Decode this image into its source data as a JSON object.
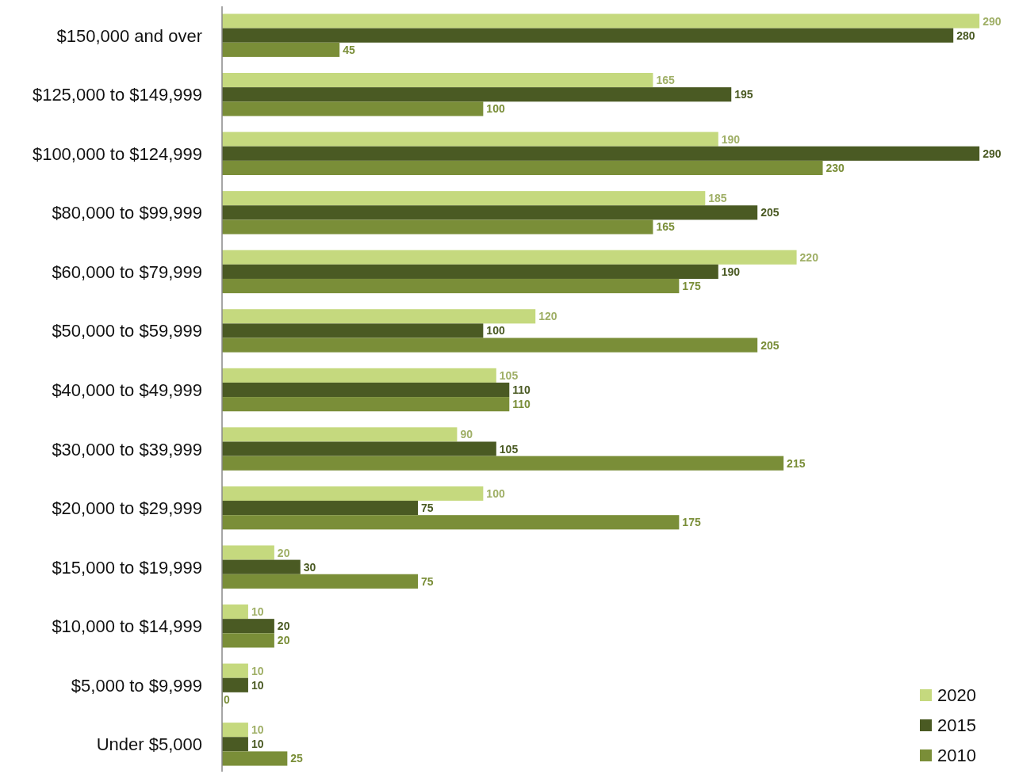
{
  "chart_data": {
    "type": "bar",
    "orientation": "horizontal",
    "categories": [
      "$150,000 and over",
      "$125,000 to $149,999",
      "$100,000 to $124,999",
      "$80,000 to $99,999",
      "$60,000 to $79,999",
      "$50,000 to $59,999",
      "$40,000 to $49,999",
      "$30,000 to $39,999",
      "$20,000 to $29,999",
      "$15,000 to $19,999",
      "$10,000 to $14,999",
      "$5,000 to $9,999",
      "Under $5,000"
    ],
    "series": [
      {
        "name": "2020",
        "color": "#c5d97e",
        "values": [
          290,
          165,
          190,
          185,
          220,
          120,
          105,
          90,
          100,
          20,
          10,
          10,
          10
        ]
      },
      {
        "name": "2015",
        "color": "#4a5a23",
        "values": [
          280,
          195,
          290,
          205,
          190,
          100,
          110,
          105,
          75,
          30,
          20,
          10,
          10
        ]
      },
      {
        "name": "2010",
        "color": "#7a8e38",
        "values": [
          45,
          100,
          230,
          165,
          175,
          205,
          110,
          215,
          175,
          75,
          20,
          0,
          25
        ]
      }
    ],
    "data_labels": true,
    "legend": "bottom right"
  }
}
